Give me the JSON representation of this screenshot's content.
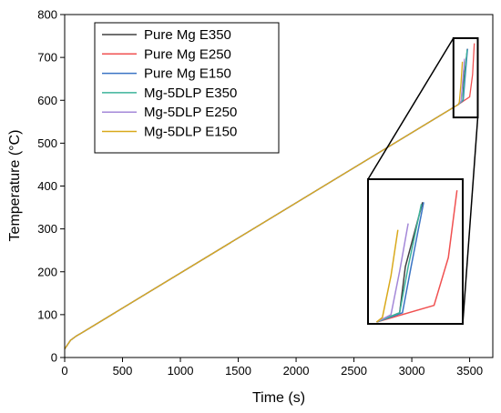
{
  "chart_data": {
    "type": "line",
    "title": "",
    "xlabel": "Time (s)",
    "ylabel": "Temperature (°C)",
    "xlim": [
      0,
      3700
    ],
    "ylim": [
      0,
      800
    ],
    "xticks": [
      0,
      500,
      1000,
      1500,
      2000,
      2500,
      3000,
      3500
    ],
    "yticks": [
      0,
      100,
      200,
      300,
      400,
      500,
      600,
      700,
      800
    ],
    "grid": false,
    "legend_position": "top-left",
    "series": [
      {
        "name": "Pure Mg E350",
        "color": "#404040",
        "x": [
          0,
          50,
          100,
          150,
          3400,
          3440,
          3450,
          3480
        ],
        "y": [
          20,
          40,
          50,
          58,
          590,
          600,
          650,
          720
        ]
      },
      {
        "name": "Pure Mg E250",
        "color": "#f05050",
        "x": [
          0,
          50,
          100,
          150,
          3400,
          3500,
          3525,
          3540
        ],
        "y": [
          20,
          40,
          50,
          58,
          590,
          608,
          660,
          733
        ]
      },
      {
        "name": "Pure Mg E150",
        "color": "#3a74c4",
        "x": [
          0,
          50,
          100,
          150,
          3400,
          3445,
          3460,
          3482
        ],
        "y": [
          20,
          40,
          50,
          58,
          590,
          600,
          650,
          720
        ]
      },
      {
        "name": "Mg-5DLP E350",
        "color": "#3cb39a",
        "x": [
          0,
          50,
          100,
          150,
          3400,
          3440,
          3455,
          3478
        ],
        "y": [
          20,
          40,
          50,
          58,
          590,
          600,
          650,
          718
        ]
      },
      {
        "name": "Mg-5DLP E250",
        "color": "#a488d8",
        "x": [
          0,
          50,
          100,
          150,
          3400,
          3425,
          3440,
          3455
        ],
        "y": [
          20,
          40,
          50,
          58,
          590,
          598,
          645,
          697
        ]
      },
      {
        "name": "Mg-5DLP E150",
        "color": "#d9a91b",
        "x": [
          0,
          50,
          100,
          150,
          3400,
          3410,
          3425,
          3437
        ],
        "y": [
          20,
          40,
          50,
          58,
          590,
          595,
          640,
          690
        ]
      }
    ]
  }
}
